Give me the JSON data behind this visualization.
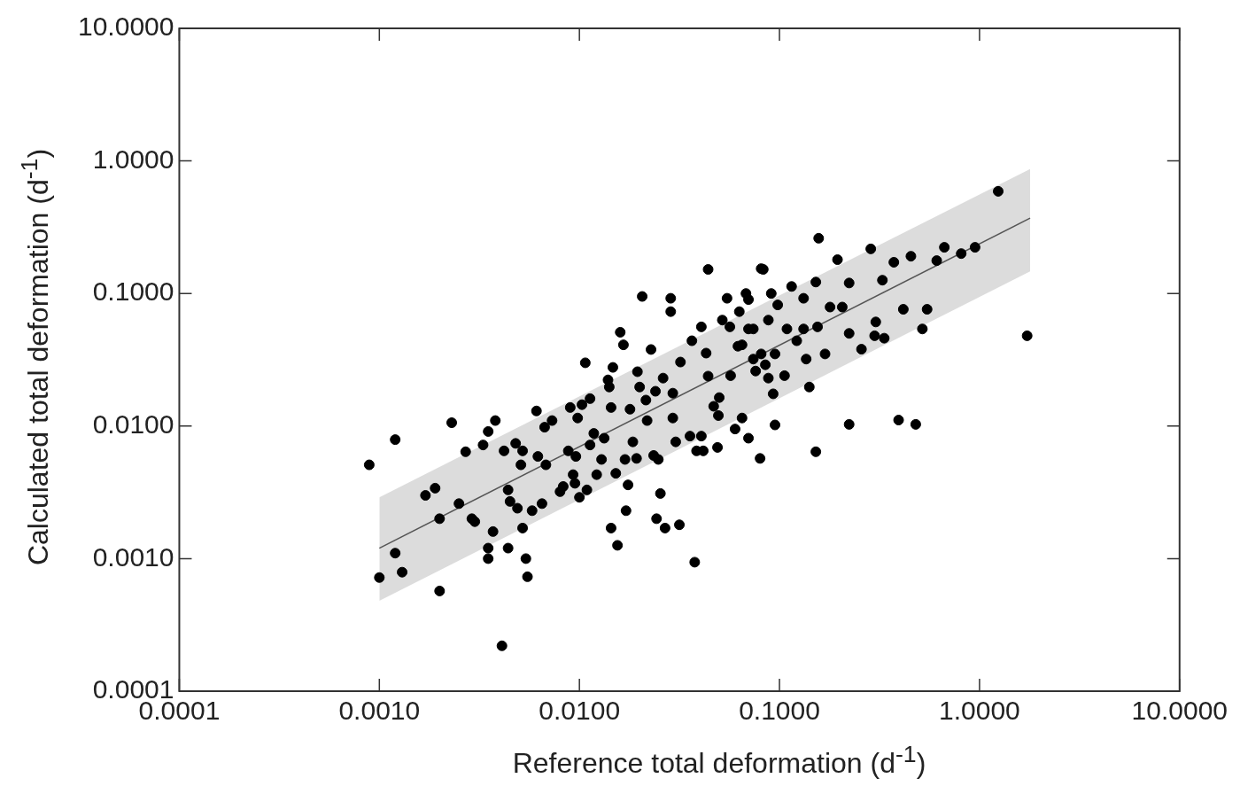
{
  "chart_data": {
    "type": "scatter",
    "xlabel": "Reference total deformation (d$^{-1}$)",
    "ylabel": "Calculated total deformation (d$^{-1}$)",
    "log": "xy",
    "legend": false,
    "xlim": [
      0.0001,
      10
    ],
    "ylim": [
      0.0001,
      10
    ],
    "xticks": [
      {
        "value": 0.0001,
        "label": "0.0001"
      },
      {
        "value": 0.001,
        "label": "0.0010"
      },
      {
        "value": 0.01,
        "label": "0.0100"
      },
      {
        "value": 0.1,
        "label": "0.1000"
      },
      {
        "value": 1,
        "label": "1.0000"
      },
      {
        "value": 10,
        "label": "10.0000"
      }
    ],
    "yticks": [
      {
        "value": 0.0001,
        "label": "0.0001"
      },
      {
        "value": 0.001,
        "label": "0.0010"
      },
      {
        "value": 0.01,
        "label": "0.0100"
      },
      {
        "value": 0.1,
        "label": "0.1000"
      },
      {
        "value": 1,
        "label": "1.0000"
      },
      {
        "value": 10,
        "label": "10.0000"
      }
    ],
    "series": [
      {
        "type": "line",
        "color": "#555555",
        "x": [
          0.001,
          1.79
        ],
        "values": [
          0.0012,
          0.37
        ],
        "lower": [
          0.00048,
          0.147
        ],
        "upper": [
          0.0029,
          0.87
        ]
      },
      {
        "marker": "circle",
        "color": "#000000",
        "x": [
          0.00089,
          0.0012,
          0.001,
          0.0012,
          0.0013,
          0.002,
          0.0017,
          0.0019,
          0.002,
          0.0023,
          0.0025,
          0.0027,
          0.0029,
          0.003,
          0.0033,
          0.0035,
          0.0038,
          0.0035,
          0.0035,
          0.0037,
          0.0041,
          0.0042,
          0.0044,
          0.0044,
          0.0045,
          0.0049,
          0.0048,
          0.0052,
          0.0051,
          0.0052,
          0.0054,
          0.0055,
          0.0058,
          0.0061,
          0.0062,
          0.0065,
          0.0067,
          0.0068,
          0.0073,
          0.008,
          0.0083,
          0.0088,
          0.009,
          0.0093,
          0.0095,
          0.0096,
          0.0098,
          0.01,
          0.0103,
          0.0107,
          0.0109,
          0.0113,
          0.0113,
          0.0118,
          0.0122,
          0.0129,
          0.0133,
          0.0139,
          0.0141,
          0.0144,
          0.0144,
          0.0147,
          0.0152,
          0.0155,
          0.016,
          0.0166,
          0.0169,
          0.0171,
          0.0175,
          0.0179,
          0.0185,
          0.0193,
          0.0195,
          0.02,
          0.0206,
          0.0215,
          0.0218,
          0.0228,
          0.0235,
          0.024,
          0.0243,
          0.0254,
          0.0248,
          0.0262,
          0.0268,
          0.0286,
          0.0286,
          0.0293,
          0.0293,
          0.0303,
          0.0316,
          0.032,
          0.0357,
          0.0365,
          0.0377,
          0.0385,
          0.0407,
          0.0407,
          0.0416,
          0.043,
          0.044,
          0.044,
          0.0469,
          0.049,
          0.0495,
          0.0518,
          0.0547,
          0.0565,
          0.06,
          0.062,
          0.065,
          0.068,
          0.07,
          0.074,
          0.08,
          0.081,
          0.085,
          0.093,
          0.095,
          0.091,
          0.157,
          0.195,
          0.286,
          0.373,
          0.454,
          0.611,
          0.667,
          0.81,
          0.95,
          1.24,
          1.73,
          0.083,
          0.115,
          0.132,
          0.152,
          0.223,
          0.327,
          0.416,
          0.547,
          0.518,
          0.303,
          0.223,
          0.257,
          0.299,
          0.334,
          0.206,
          0.179,
          0.155,
          0.169,
          0.136,
          0.132,
          0.122,
          0.095,
          0.106,
          0.141,
          0.223,
          0.394,
          0.48,
          0.152,
          0.088,
          0.074,
          0.07,
          0.098,
          0.088,
          0.109,
          0.081,
          0.065,
          0.057,
          0.05,
          0.076,
          0.07,
          0.063
        ],
        "values": [
          0.0051,
          0.0079,
          0.00072,
          0.0011,
          0.00079,
          0.00057,
          0.003,
          0.0034,
          0.002,
          0.0106,
          0.0026,
          0.0064,
          0.002,
          0.0019,
          0.0072,
          0.0091,
          0.011,
          0.0012,
          0.001,
          0.0016,
          0.00022,
          0.0065,
          0.0012,
          0.0033,
          0.0027,
          0.0024,
          0.0074,
          0.0065,
          0.0051,
          0.0017,
          0.001,
          0.00073,
          0.0023,
          0.013,
          0.0059,
          0.0026,
          0.0098,
          0.0051,
          0.011,
          0.0032,
          0.0035,
          0.0065,
          0.0138,
          0.0043,
          0.0037,
          0.0059,
          0.0115,
          0.0029,
          0.0145,
          0.03,
          0.0033,
          0.0161,
          0.0072,
          0.0088,
          0.0043,
          0.0056,
          0.0081,
          0.0223,
          0.0197,
          0.0138,
          0.0017,
          0.0277,
          0.0044,
          0.00126,
          0.051,
          0.041,
          0.0056,
          0.0023,
          0.0036,
          0.0134,
          0.0076,
          0.0057,
          0.0257,
          0.0197,
          0.095,
          0.0157,
          0.011,
          0.0378,
          0.006,
          0.0183,
          0.002,
          0.0031,
          0.0056,
          0.023,
          0.0017,
          0.092,
          0.073,
          0.0115,
          0.0177,
          0.0076,
          0.0018,
          0.0304,
          0.0084,
          0.044,
          0.00094,
          0.0065,
          0.0084,
          0.056,
          0.0065,
          0.0355,
          0.152,
          0.0238,
          0.0141,
          0.0069,
          0.012,
          0.063,
          0.092,
          0.056,
          0.0095,
          0.04,
          0.0115,
          0.1,
          0.0081,
          0.054,
          0.0057,
          0.154,
          0.029,
          0.0175,
          0.0102,
          0.1,
          0.261,
          0.18,
          0.217,
          0.172,
          0.191,
          0.177,
          0.223,
          0.2,
          0.223,
          0.59,
          0.048,
          0.152,
          0.113,
          0.092,
          0.122,
          0.12,
          0.126,
          0.076,
          0.076,
          0.054,
          0.061,
          0.05,
          0.038,
          0.048,
          0.046,
          0.079,
          0.079,
          0.056,
          0.035,
          0.032,
          0.054,
          0.044,
          0.035,
          0.024,
          0.0197,
          0.0103,
          0.0111,
          0.0103,
          0.0064,
          0.023,
          0.032,
          0.09,
          0.082,
          0.063,
          0.054,
          0.035,
          0.041,
          0.024,
          0.0164,
          0.026,
          0.054,
          0.073
        ]
      }
    ]
  }
}
